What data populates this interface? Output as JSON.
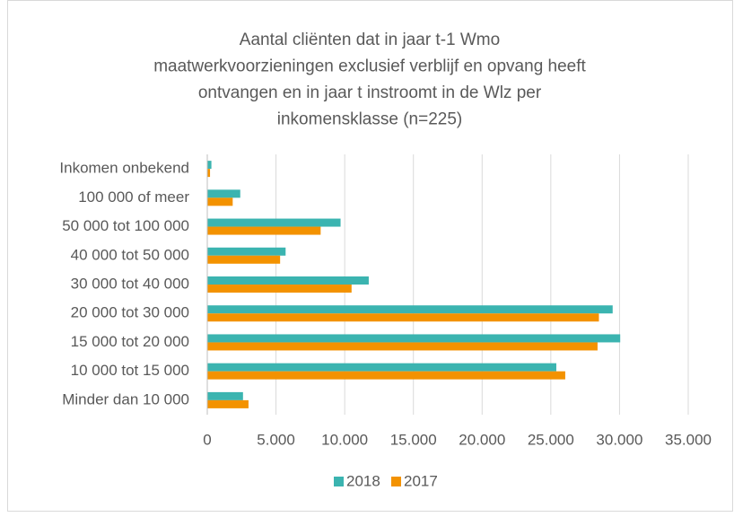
{
  "chart_data": {
    "type": "hbar",
    "title": [
      "Aantal cliënten dat in jaar t-1 Wmo",
      "maatwerkvoorzieningen  exclusief verblijf en opvang heeft",
      "ontvangen en in jaar t instroomt in de Wlz per",
      "inkomensklasse (n=225)"
    ],
    "categories": [
      "Inkomen onbekend",
      "100 000 of meer",
      "50 000 tot 100 000",
      "40 000 tot 50 000",
      "30 000 tot 40 000",
      "20 000 tot 30 000",
      "15 000 tot 20 000",
      "10 000 tot 15 000",
      "Minder dan 10 000"
    ],
    "series": [
      {
        "name": "2018",
        "color": "#3bb4b0",
        "values": [
          300,
          2400,
          9700,
          5700,
          11750,
          29500,
          30050,
          25400,
          2600
        ]
      },
      {
        "name": "2017",
        "color": "#f39200",
        "values": [
          200,
          1850,
          8250,
          5300,
          10500,
          28500,
          28400,
          26050,
          3000
        ]
      }
    ],
    "xlim": [
      0,
      35000
    ],
    "xticks": [
      0,
      {
        "value": 5000,
        "label": "5.000"
      },
      {
        "value": 10000,
        "label": "10.000"
      },
      {
        "value": 15000,
        "label": "15.000"
      },
      {
        "value": 20000,
        "label": "20.000"
      },
      {
        "value": 25000,
        "label": "25.000"
      },
      {
        "value": 30000,
        "label": "30.000"
      },
      {
        "value": 35000,
        "label": "35.000"
      }
    ],
    "grid": true,
    "legend": "bottom"
  }
}
